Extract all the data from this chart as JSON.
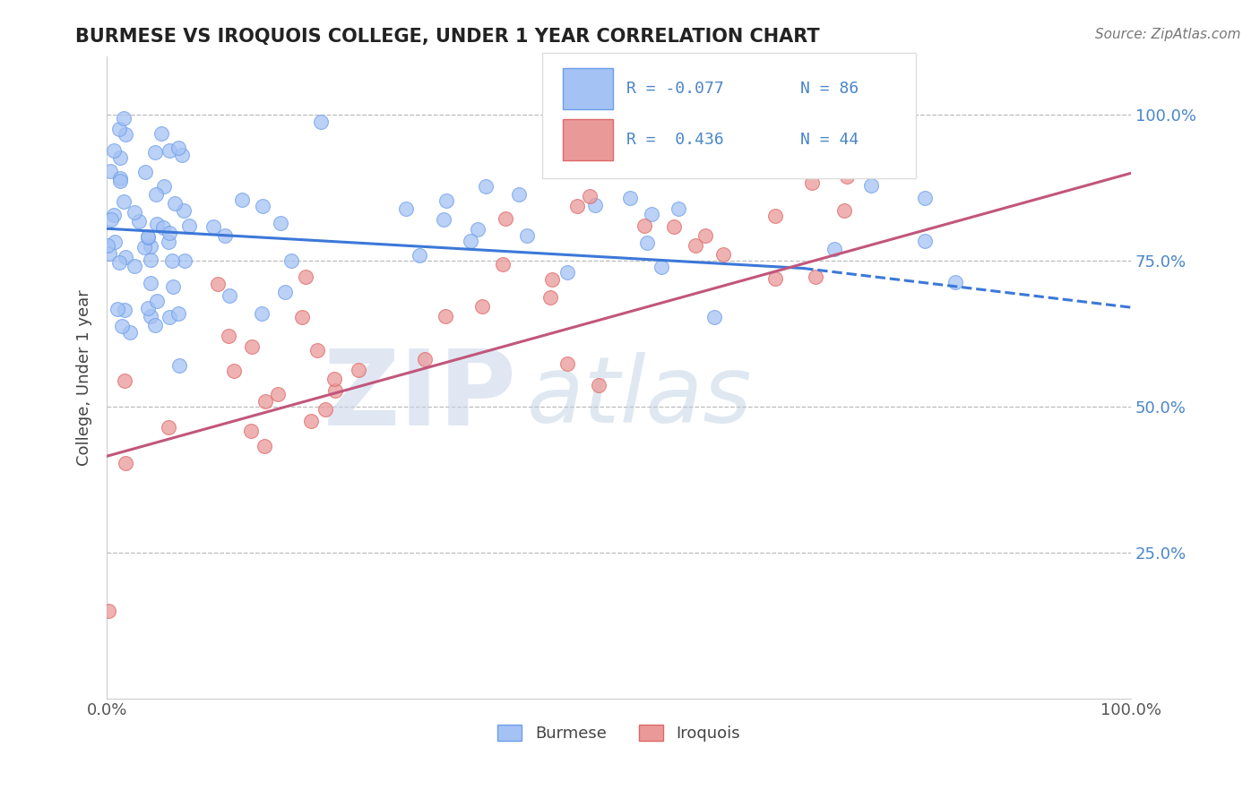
{
  "title": "BURMESE VS IROQUOIS COLLEGE, UNDER 1 YEAR CORRELATION CHART",
  "source_text": "Source: ZipAtlas.com",
  "ylabel": "College, Under 1 year",
  "xmin": 0.0,
  "xmax": 1.0,
  "ymin": 0.0,
  "ymax": 1.1,
  "blue_color": "#a4c2f4",
  "blue_edge_color": "#6d9eeb",
  "pink_color": "#ea9999",
  "pink_edge_color": "#e06666",
  "blue_line_color": "#3c78d8",
  "pink_line_color": "#c2567c",
  "legend_R_blue": "-0.077",
  "legend_N_blue": "86",
  "legend_R_pink": "0.436",
  "legend_N_pink": "44",
  "blue_label": "Burmese",
  "pink_label": "Iroquois",
  "watermark_ZIP": "ZIP",
  "watermark_atlas": "atlas",
  "title_fontsize": 15,
  "legend_fontsize": 13,
  "axis_label_color": "#4a86c8",
  "grid_color": "#bbbbbb",
  "blue_trend_solid_end": 0.68,
  "blue_trend_y0": 0.805,
  "blue_trend_y1": 0.705,
  "blue_trend_dashed_y1": 0.67,
  "pink_trend_y0": 0.415,
  "pink_trend_y1": 0.9
}
